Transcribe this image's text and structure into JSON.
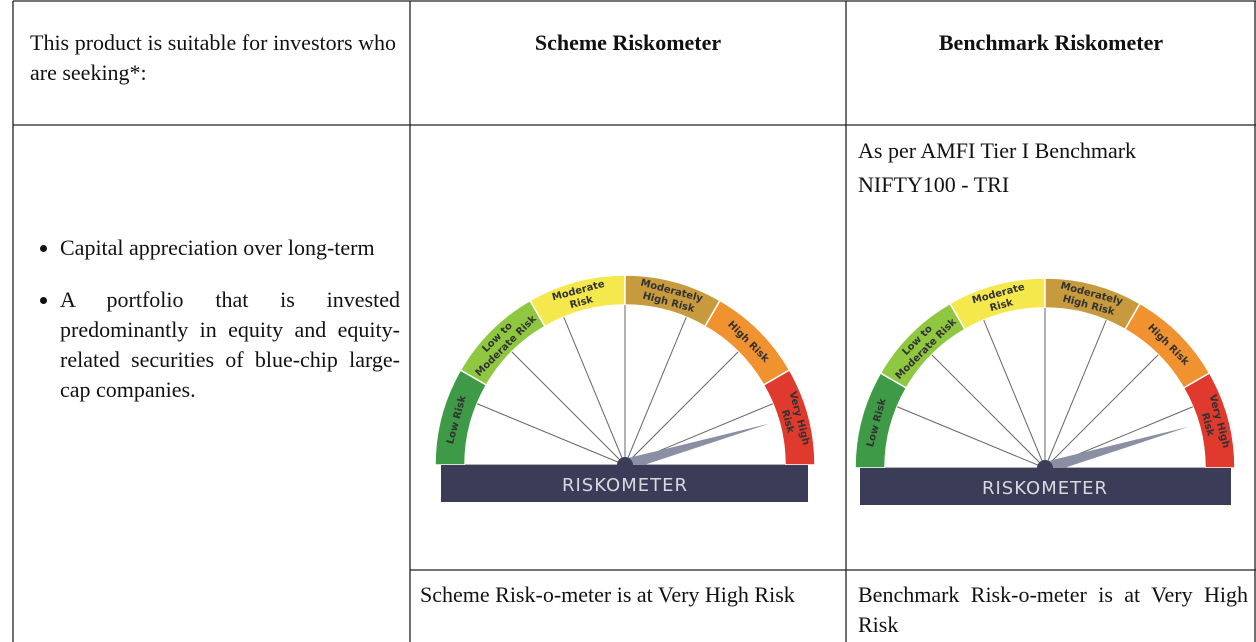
{
  "table": {
    "header": [
      "This product is suitable for investors who are seeking*:",
      "Scheme Riskometer",
      "Benchmark Riskometer"
    ],
    "suitability": [
      "Capital appreciation over long-term",
      "A portfolio that is invested predominantly in equity and equity-related securities of blue-chip large-cap companies."
    ],
    "benchmark_note": [
      "As per AMFI Tier I Benchmark",
      "NIFTY100 - TRI"
    ],
    "scheme_level": "Scheme Risk-o-meter is at Very High Risk",
    "benchmark_level": "Benchmark Risk-o-meter is at Very High Risk"
  },
  "riskometers": [
    {
      "segments": [
        [
          "Low Risk"
        ],
        [
          "Low to",
          "Moderate Risk"
        ],
        [
          "Moderate",
          "Risk"
        ],
        [
          "Moderately",
          "High Risk"
        ],
        [
          "High Risk"
        ],
        [
          "Very High",
          "Risk"
        ]
      ],
      "title": "RISKOMETER"
    },
    {
      "segments": [
        [
          "Low Risk"
        ],
        [
          "Low to",
          "Moderate Risk"
        ],
        [
          "Moderate",
          "Risk"
        ],
        [
          "Moderately",
          "High Risk"
        ],
        [
          "High Risk"
        ],
        [
          "Very High",
          "Risk"
        ]
      ],
      "title": "RISKOMETER"
    }
  ]
}
